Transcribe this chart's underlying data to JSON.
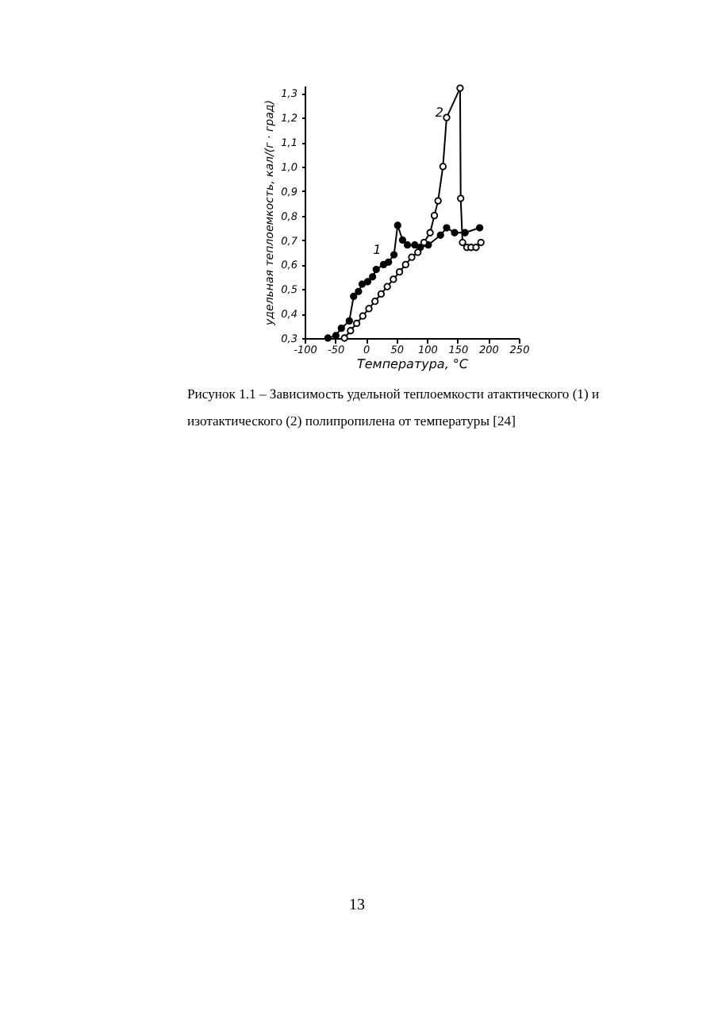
{
  "chart_data": {
    "type": "line",
    "xlabel": "Температура, °C",
    "ylabel": "удельная теплоемкость, кал/(г · град)",
    "series": [
      {
        "name": "1",
        "color": "#000000",
        "x": [
          -62,
          -49,
          -40,
          -27,
          -20,
          -12,
          -6,
          3,
          11,
          17,
          29,
          37,
          46,
          52,
          60,
          68,
          80,
          89,
          102,
          122,
          132,
          145,
          162,
          186
        ],
        "values": [
          0.3,
          0.31,
          0.34,
          0.37,
          0.47,
          0.49,
          0.52,
          0.53,
          0.55,
          0.58,
          0.6,
          0.61,
          0.64,
          0.76,
          0.7,
          0.68,
          0.68,
          0.67,
          0.68,
          0.72,
          0.75,
          0.73,
          0.73,
          0.75
        ]
      },
      {
        "name": "2",
        "color": "#000000",
        "x": [
          -35,
          -25,
          -15,
          -5,
          5,
          15,
          25,
          35,
          45,
          55,
          65,
          75,
          85,
          95,
          105,
          112,
          118,
          126,
          132,
          154,
          155,
          158,
          165,
          172,
          180,
          188
        ],
        "values": [
          0.3,
          0.33,
          0.36,
          0.39,
          0.42,
          0.45,
          0.48,
          0.51,
          0.54,
          0.57,
          0.6,
          0.63,
          0.65,
          0.69,
          0.73,
          0.8,
          0.86,
          1.0,
          1.2,
          1.32,
          0.87,
          0.69,
          0.67,
          0.67,
          0.67,
          0.69
        ]
      }
    ],
    "xlim": [
      -100,
      250
    ],
    "xticks": [
      -100,
      -50,
      0,
      50,
      100,
      150,
      200,
      250
    ],
    "ylim": [
      0.3,
      1.33
    ],
    "yticks": [
      {
        "value": 0.3,
        "label": "0,3"
      },
      {
        "value": 0.4,
        "label": "0,4"
      },
      {
        "value": 0.5,
        "label": "0,5"
      },
      {
        "value": 0.6,
        "label": "0,6"
      },
      {
        "value": 0.7,
        "label": "0,7"
      },
      {
        "value": 0.8,
        "label": "0,8"
      },
      {
        "value": 0.9,
        "label": "0,9"
      },
      {
        "value": 1.0,
        "label": "1,0"
      },
      {
        "value": 1.1,
        "label": "1,1"
      },
      {
        "value": 1.2,
        "label": "1,2"
      },
      {
        "value": 1.3,
        "label": "1,3"
      }
    ],
    "grid": false,
    "legend": false,
    "marker": "circle",
    "line_style": "solid",
    "annotations": [
      "Рисунок 1.1 – Зависимость удельной теплоемкости атактического (1) и изотактического (2) полипропилена от температуры [24]",
      "13"
    ]
  }
}
